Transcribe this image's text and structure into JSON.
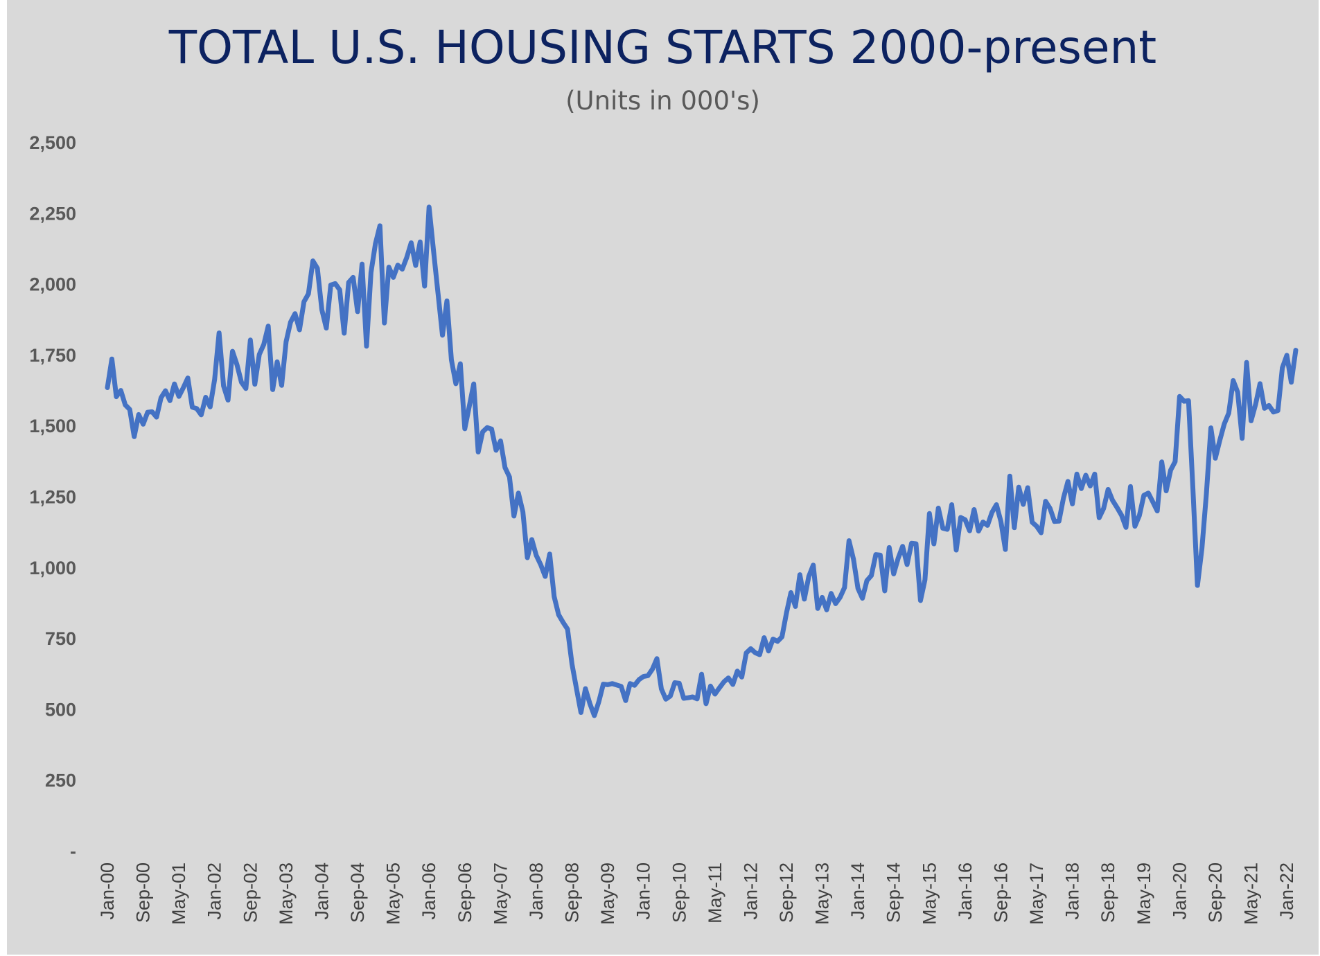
{
  "chart_data": {
    "type": "line",
    "title": "TOTAL U.S. HOUSING STARTS 2000-present",
    "subtitle": "(Units in 000's)",
    "xlabel": "",
    "ylabel": "",
    "ylim": [
      0,
      2500
    ],
    "y_ticks": [
      0,
      250,
      500,
      750,
      1000,
      1250,
      1500,
      1750,
      2000,
      2250,
      2500
    ],
    "y_tick_labels": [
      "-",
      "250",
      "500",
      "750",
      "1,000",
      "1,250",
      "1,500",
      "1,750",
      "2,000",
      "2,250",
      "2,500"
    ],
    "x_tick_labels": [
      "Jan-00",
      "Sep-00",
      "May-01",
      "Jan-02",
      "Sep-02",
      "May-03",
      "Jan-04",
      "Sep-04",
      "May-05",
      "Jan-06",
      "Sep-06",
      "May-07",
      "Jan-08",
      "Sep-08",
      "May-09",
      "Jan-10",
      "Sep-10",
      "May-11",
      "Jan-12",
      "Sep-12",
      "May-13",
      "Jan-14",
      "Sep-14",
      "May-15",
      "Jan-16",
      "Sep-16",
      "May-17",
      "Jan-18",
      "Sep-18",
      "May-19",
      "Jan-20",
      "Sep-20",
      "May-21",
      "Jan-22"
    ],
    "x_tick_interval_months": 8,
    "x_start": "Jan-00",
    "grid": false,
    "legend": "none",
    "colors": {
      "background": "#d9d9d9",
      "line": "#4472c4",
      "title": "#0c2260"
    },
    "series": [
      {
        "values": [
          1636,
          1737,
          1604,
          1626,
          1575,
          1559,
          1463,
          1541,
          1507,
          1549,
          1551,
          1532,
          1600,
          1625,
          1590,
          1649,
          1605,
          1636,
          1670,
          1567,
          1562,
          1540,
          1602,
          1568,
          1665,
          1829,
          1642,
          1592,
          1764,
          1717,
          1655,
          1633,
          1804,
          1648,
          1753,
          1788,
          1853,
          1629,
          1727,
          1644,
          1798,
          1867,
          1897,
          1840,
          1939,
          1967,
          2083,
          2057,
          1911,
          1846,
          1998,
          2003,
          1981,
          1828,
          2007,
          2025,
          1904,
          2072,
          1782,
          2042,
          2144,
          2207,
          1864,
          2061,
          2025,
          2068,
          2054,
          2095,
          2147,
          2067,
          2150,
          1994,
          2273,
          2119,
          1969,
          1821,
          1942,
          1734,
          1650,
          1720,
          1491,
          1570,
          1649,
          1409,
          1480,
          1495,
          1490,
          1415,
          1448,
          1354,
          1321,
          1183,
          1264,
          1198,
          1036,
          1100,
          1044,
          1011,
          970,
          1049,
          899,
          835,
          808,
          784,
          660,
          574,
          490,
          574,
          521,
          479,
          528,
          590,
          588,
          592,
          587,
          582,
          532,
          592,
          586,
          606,
          617,
          620,
          643,
          680,
          573,
          537,
          548,
          595,
          593,
          540,
          542,
          545,
          538,
          625,
          521,
          583,
          555,
          577,
          598,
          612,
          589,
          636,
          615,
          700,
          715,
          701,
          694,
          754,
          707,
          749,
          741,
          757,
          841,
          913,
          864,
          976,
          890,
          970,
          1010,
          857,
          896,
          852,
          910,
          874,
          896,
          931,
          1096,
          1031,
          928,
          893,
          955,
          973,
          1047,
          1045,
          919,
          1072,
          979,
          1034,
          1076,
          1012,
          1087,
          1085,
          885,
          958,
          1192,
          1085,
          1211,
          1140,
          1136,
          1223,
          1063,
          1178,
          1170,
          1131,
          1206,
          1130,
          1162,
          1150,
          1196,
          1223,
          1164,
          1065,
          1324,
          1142,
          1285,
          1224,
          1283,
          1161,
          1147,
          1124,
          1235,
          1210,
          1164,
          1165,
          1246,
          1305,
          1226,
          1331,
          1280,
          1327,
          1289,
          1331,
          1177,
          1210,
          1277,
          1238,
          1213,
          1186,
          1143,
          1287,
          1147,
          1185,
          1256,
          1264,
          1233,
          1201,
          1374,
          1272,
          1345,
          1375,
          1605,
          1588,
          1590,
          1273,
          938,
          1069,
          1262,
          1494,
          1387,
          1450,
          1508,
          1546,
          1661,
          1620,
          1457,
          1725,
          1519,
          1576,
          1650,
          1563,
          1573,
          1550,
          1555,
          1706,
          1750,
          1655,
          1768
        ]
      }
    ]
  }
}
